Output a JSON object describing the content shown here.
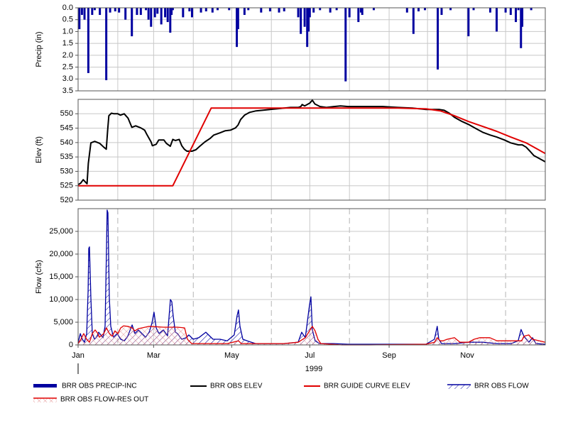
{
  "chart_data": [
    {
      "type": "bar",
      "y_label": "Precip (in)",
      "xlim": [
        0,
        365
      ],
      "ylim": [
        0,
        3.5
      ],
      "y_inverted": true,
      "grid": true,
      "yticks": [
        {
          "value": 0,
          "label": "0.0"
        },
        0.5,
        {
          "value": 1,
          "label": "1.0"
        },
        1.5,
        {
          "value": 2,
          "label": "2.0"
        },
        2.5,
        {
          "value": 3,
          "label": "3.0"
        },
        3.5
      ],
      "x": [
        1,
        3,
        5,
        8,
        11,
        13,
        17,
        22,
        25,
        29,
        32,
        37,
        42,
        46,
        49,
        53,
        55,
        57,
        60,
        62,
        65,
        68,
        70,
        72,
        73,
        74,
        82,
        87,
        89,
        96,
        100,
        105,
        109,
        118,
        124,
        125,
        130,
        133,
        143,
        150,
        157,
        161,
        172,
        174,
        177,
        179,
        180,
        181,
        184,
        189,
        197,
        202,
        209,
        212,
        219,
        221,
        222,
        231,
        257,
        262,
        266,
        271,
        281,
        284,
        291,
        305,
        309,
        322,
        327,
        334,
        338,
        342,
        344,
        346,
        347,
        354
      ],
      "series": [
        {
          "name": "BRR OBS PRECIP-INC",
          "color": "#0000a0",
          "style": "bar",
          "values": [
            0.9,
            0.3,
            0.5,
            2.75,
            0.3,
            0.1,
            0.3,
            3.05,
            0.2,
            0.15,
            0.2,
            0.5,
            1.2,
            0.3,
            0.3,
            0.1,
            0.5,
            0.8,
            0.4,
            0.25,
            0.7,
            0.4,
            0.6,
            1.05,
            0.3,
            0.1,
            0.4,
            0.15,
            0.4,
            0.2,
            0.15,
            0.2,
            0.1,
            0.1,
            1.65,
            0.9,
            0.3,
            0.1,
            0.2,
            0.15,
            0.2,
            0.15,
            0.4,
            1.1,
            0.8,
            1.65,
            1.0,
            0.4,
            0.2,
            0.1,
            0.2,
            0.1,
            3.1,
            0.4,
            0.6,
            0.2,
            0.3,
            0.1,
            0.2,
            1.1,
            0.15,
            0.1,
            2.6,
            0.3,
            0.1,
            1.2,
            0.1,
            0.2,
            1.0,
            0.2,
            0.3,
            0.6,
            0.1,
            1.7,
            0.8,
            0.1
          ]
        }
      ]
    },
    {
      "type": "line",
      "y_label": "Elev (ft)",
      "xlim": [
        0,
        365
      ],
      "ylim": [
        520,
        555
      ],
      "grid": true,
      "yticks": [
        520,
        525,
        530,
        535,
        540,
        545,
        550
      ],
      "series": [
        {
          "name": "BRR OBS ELEV",
          "color": "#000000",
          "style": "line",
          "x": [
            0,
            2,
            4,
            7,
            8,
            10,
            13,
            17,
            20,
            22,
            23,
            24,
            26,
            28,
            31,
            33,
            36,
            39,
            42,
            45,
            49,
            52,
            54,
            57,
            58,
            61,
            63,
            67,
            69,
            72,
            74,
            76,
            79,
            81,
            83,
            85,
            89,
            92,
            95,
            99,
            103,
            106,
            111,
            115,
            119,
            123,
            125,
            127,
            130,
            134,
            139,
            144,
            150,
            155,
            161,
            166,
            172,
            174,
            175,
            177,
            181,
            183,
            185,
            189,
            194,
            200,
            205,
            211,
            216,
            227,
            238,
            250,
            261,
            272,
            282,
            286,
            290,
            294,
            300,
            305,
            311,
            316,
            322,
            327,
            333,
            338,
            344,
            347,
            350,
            353,
            356,
            361,
            365
          ],
          "values": [
            525.4,
            525.9,
            527.1,
            525.7,
            532.8,
            539.9,
            540.4,
            539.7,
            538.4,
            537.7,
            543.9,
            549.3,
            550.2,
            550,
            550,
            549.5,
            550,
            548.5,
            545.3,
            545.8,
            545.1,
            544.3,
            542.6,
            540.2,
            538.9,
            539.4,
            540.9,
            540.9,
            539.7,
            538.7,
            541.1,
            540.7,
            541.1,
            538.9,
            537.7,
            537,
            537,
            537.5,
            538.7,
            540.2,
            541.4,
            542.6,
            543.4,
            544.1,
            544.3,
            545.1,
            546.1,
            548,
            549.5,
            550.5,
            551,
            551.2,
            551.5,
            551.7,
            552,
            552.2,
            552.2,
            552.5,
            553.2,
            552.7,
            553.7,
            554.7,
            553.4,
            552.5,
            552.2,
            552.5,
            552.7,
            552.5,
            552.5,
            552.5,
            552.5,
            552.2,
            552,
            551.5,
            551.5,
            551.2,
            550.2,
            548.8,
            547.3,
            546.3,
            544.8,
            543.6,
            542.6,
            541.9,
            540.9,
            539.9,
            539.2,
            539.2,
            538.4,
            537,
            535.5,
            534.3,
            533.3
          ]
        },
        {
          "name": "BRR GUIDE CURVE ELEV",
          "color": "#e00000",
          "style": "line",
          "x": [
            0,
            74,
            104,
            250,
            272,
            283,
            294,
            305,
            316,
            327,
            338,
            350,
            365
          ],
          "values": [
            525,
            525,
            552,
            552,
            551.7,
            551,
            549.3,
            547.3,
            545.6,
            543.9,
            541.9,
            539.9,
            536.2
          ]
        }
      ]
    },
    {
      "type": "area",
      "y_label": "Flow (cfs)",
      "x_label": "1999",
      "xlim": [
        0,
        365
      ],
      "ylim": [
        0,
        30000
      ],
      "grid": true,
      "yticks": [
        0,
        {
          "value": 5000,
          "label": "5,000"
        },
        {
          "value": 10000,
          "label": "10,000"
        },
        {
          "value": 15000,
          "label": "15,000"
        },
        {
          "value": 20000,
          "label": "20,000"
        },
        {
          "value": 25000,
          "label": "25,000"
        }
      ],
      "xticks": [
        {
          "value": 0,
          "label": "Jan"
        },
        {
          "value": 59,
          "label": "Mar"
        },
        {
          "value": 120,
          "label": "May"
        },
        {
          "value": 181,
          "label": "Jul"
        },
        {
          "value": 243,
          "label": "Sep"
        },
        {
          "value": 304,
          "label": "Nov"
        }
      ],
      "x_minor_ticks": [
        31,
        90,
        151,
        212,
        273,
        334
      ],
      "series": [
        {
          "name": "BRR OBS FLOW",
          "color": "#0000a0",
          "style": "hatch",
          "x": [
            0,
            1.7,
            3.3,
            5,
            6.7,
            7.8,
            8.3,
            8.9,
            10,
            11.1,
            12.8,
            14.4,
            16.1,
            17.7,
            19.4,
            21.1,
            22.2,
            22.7,
            23.3,
            24.4,
            25.5,
            27.7,
            30.5,
            33.3,
            36.1,
            38.8,
            42.2,
            44.4,
            47.1,
            49.9,
            52.7,
            55.5,
            57.7,
            59.3,
            61,
            63.2,
            66.6,
            69.9,
            72.1,
            73.2,
            74.3,
            76,
            77.6,
            81,
            84.3,
            86.5,
            89.9,
            94.3,
            99.8,
            105.4,
            110.9,
            116.5,
            122,
            124.2,
            125.3,
            126.5,
            128.7,
            133.1,
            138.7,
            149.8,
            160.8,
            171.9,
            174.7,
            177.5,
            180.8,
            181.9,
            183,
            185.2,
            188.6,
            199.7,
            210.8,
            227.4,
            249.6,
            271.8,
            278.4,
            280.6,
            281.8,
            284,
            294,
            305,
            316.1,
            327.2,
            338.3,
            343.8,
            346.1,
            348.3,
            352.2,
            355,
            357.7,
            364.9
          ],
          "values": [
            470,
            2500,
            1250,
            600,
            2500,
            11900,
            21250,
            21600,
            10300,
            2500,
            1250,
            1700,
            2800,
            2200,
            1600,
            4100,
            21250,
            29700,
            29100,
            10300,
            4100,
            1700,
            2500,
            1250,
            900,
            1900,
            4400,
            2500,
            3300,
            2500,
            1700,
            2800,
            4800,
            7200,
            3750,
            2500,
            3300,
            2000,
            10000,
            9500,
            6400,
            2800,
            2500,
            1250,
            1600,
            2200,
            1250,
            1600,
            2800,
            1250,
            1250,
            900,
            2200,
            6400,
            7700,
            4100,
            1250,
            800,
            300,
            300,
            300,
            600,
            2800,
            1600,
            8750,
            10600,
            3300,
            900,
            300,
            300,
            150,
            150,
            150,
            150,
            1250,
            4100,
            1250,
            300,
            300,
            600,
            600,
            300,
            300,
            900,
            3400,
            1900,
            600,
            1600,
            300,
            150
          ]
        },
        {
          "name": "BRR OBS FLOW-RES OUT",
          "color": "#e00000",
          "style": "crosshatch",
          "x": [
            0,
            2.2,
            4.4,
            6.7,
            8.9,
            11.1,
            13.3,
            15.5,
            16.6,
            20,
            22.2,
            24.4,
            26.6,
            28.8,
            31.1,
            33.3,
            35.5,
            38.8,
            42.2,
            44.4,
            47.1,
            49.9,
            55.5,
            66.6,
            77.6,
            83.2,
            85.4,
            88.7,
            99.8,
            116.5,
            125.3,
            127.5,
            160.8,
            171.9,
            177.5,
            180.8,
            183,
            185.2,
            187.4,
            189.6,
            205.9,
            227.4,
            271.8,
            278.4,
            280.6,
            282.9,
            285.1,
            288.4,
            294,
            298.4,
            305,
            309.4,
            313.9,
            321.7,
            327.2,
            346.6,
            348.3,
            352.2,
            355,
            360.5,
            364.9
          ],
          "values": [
            300,
            1250,
            2500,
            1250,
            600,
            2500,
            3300,
            2500,
            1700,
            2500,
            3750,
            2500,
            1900,
            3100,
            2500,
            3750,
            4200,
            4100,
            3750,
            3100,
            3600,
            3750,
            4100,
            3900,
            3900,
            3750,
            1250,
            300,
            300,
            300,
            900,
            300,
            300,
            600,
            1600,
            3100,
            4100,
            3100,
            1250,
            300,
            0,
            0,
            150,
            600,
            1600,
            900,
            900,
            1250,
            1600,
            600,
            600,
            1250,
            1600,
            1600,
            900,
            900,
            1900,
            2200,
            1250,
            900,
            600
          ]
        }
      ]
    }
  ]
}
